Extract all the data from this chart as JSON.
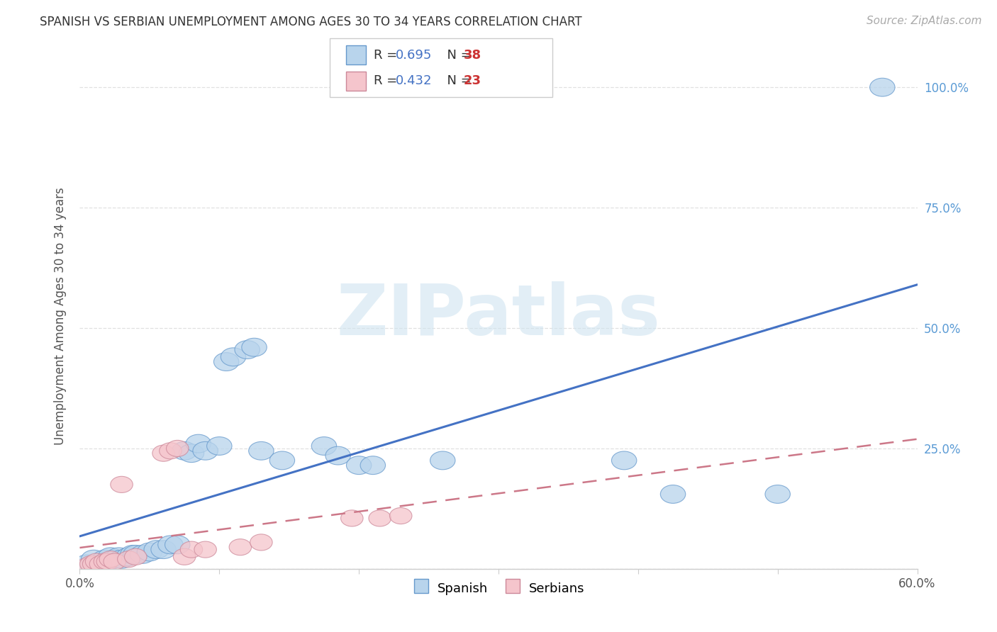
{
  "title": "SPANISH VS SERBIAN UNEMPLOYMENT AMONG AGES 30 TO 34 YEARS CORRELATION CHART",
  "source": "Source: ZipAtlas.com",
  "ylabel": "Unemployment Among Ages 30 to 34 years",
  "xlim": [
    0.0,
    0.6
  ],
  "ylim": [
    0.0,
    1.05
  ],
  "xticks": [
    0.0,
    0.1,
    0.2,
    0.3,
    0.4,
    0.5,
    0.6
  ],
  "xticklabels": [
    "0.0%",
    "",
    "",
    "",
    "",
    "",
    "60.0%"
  ],
  "yticks": [
    0.0,
    0.25,
    0.5,
    0.75,
    1.0
  ],
  "yticklabels": [
    "",
    "25.0%",
    "50.0%",
    "75.0%",
    "100.0%"
  ],
  "spanish_R": "0.695",
  "spanish_N": "38",
  "serbian_R": "0.432",
  "serbian_N": "23",
  "spanish_face_color": "#b8d4ec",
  "spanish_edge_color": "#6699cc",
  "serbian_face_color": "#f5c5cc",
  "serbian_edge_color": "#cc8899",
  "spanish_line_color": "#4472c4",
  "serbian_line_color": "#cc7788",
  "watermark_text": "ZIPatlas",
  "watermark_color": "#d0e4f0",
  "spanish_points": [
    [
      0.005,
      0.01
    ],
    [
      0.01,
      0.02
    ],
    [
      0.015,
      0.01
    ],
    [
      0.018,
      0.02
    ],
    [
      0.02,
      0.015
    ],
    [
      0.022,
      0.025
    ],
    [
      0.025,
      0.02
    ],
    [
      0.028,
      0.025
    ],
    [
      0.03,
      0.02
    ],
    [
      0.035,
      0.025
    ],
    [
      0.038,
      0.03
    ],
    [
      0.04,
      0.03
    ],
    [
      0.045,
      0.03
    ],
    [
      0.05,
      0.035
    ],
    [
      0.055,
      0.04
    ],
    [
      0.06,
      0.04
    ],
    [
      0.065,
      0.05
    ],
    [
      0.07,
      0.05
    ],
    [
      0.075,
      0.245
    ],
    [
      0.08,
      0.24
    ],
    [
      0.085,
      0.26
    ],
    [
      0.09,
      0.245
    ],
    [
      0.1,
      0.255
    ],
    [
      0.105,
      0.43
    ],
    [
      0.11,
      0.44
    ],
    [
      0.12,
      0.455
    ],
    [
      0.125,
      0.46
    ],
    [
      0.13,
      0.245
    ],
    [
      0.145,
      0.225
    ],
    [
      0.175,
      0.255
    ],
    [
      0.185,
      0.235
    ],
    [
      0.2,
      0.215
    ],
    [
      0.21,
      0.215
    ],
    [
      0.26,
      0.225
    ],
    [
      0.39,
      0.225
    ],
    [
      0.425,
      0.155
    ],
    [
      0.5,
      0.155
    ],
    [
      0.575,
      1.0
    ]
  ],
  "serbian_points": [
    [
      0.005,
      0.005
    ],
    [
      0.008,
      0.01
    ],
    [
      0.01,
      0.01
    ],
    [
      0.012,
      0.015
    ],
    [
      0.015,
      0.01
    ],
    [
      0.018,
      0.015
    ],
    [
      0.02,
      0.015
    ],
    [
      0.022,
      0.02
    ],
    [
      0.025,
      0.015
    ],
    [
      0.03,
      0.175
    ],
    [
      0.035,
      0.02
    ],
    [
      0.04,
      0.025
    ],
    [
      0.06,
      0.24
    ],
    [
      0.065,
      0.245
    ],
    [
      0.07,
      0.25
    ],
    [
      0.075,
      0.025
    ],
    [
      0.08,
      0.04
    ],
    [
      0.09,
      0.04
    ],
    [
      0.115,
      0.045
    ],
    [
      0.13,
      0.055
    ],
    [
      0.195,
      0.105
    ],
    [
      0.215,
      0.105
    ],
    [
      0.23,
      0.11
    ]
  ],
  "background_color": "#ffffff",
  "grid_color": "#dddddd",
  "title_fontsize": 12,
  "source_fontsize": 11,
  "tick_fontsize": 12,
  "ylabel_fontsize": 12
}
